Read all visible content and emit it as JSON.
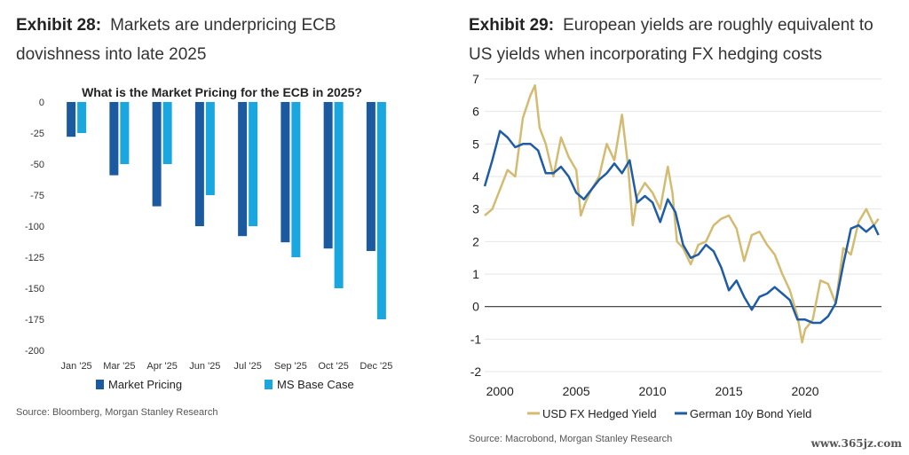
{
  "exhibit28": {
    "label": "Exhibit 28:",
    "title": "Markets are underpricing ECB dovishness into late 2025",
    "source": "Source: Bloomberg, Morgan Stanley Research"
  },
  "exhibit29": {
    "label": "Exhibit 29:",
    "title": "European yields are roughly equivalent to US yields when incorporating FX hedging costs",
    "source": "Source: Macrobond, Morgan Stanley Research"
  },
  "watermark": "www.365jz.com",
  "colors": {
    "dark_blue": "#1c5aa0",
    "light_blue": "#1aa7e0",
    "gold": "#d4bb72",
    "navy": "#1f5ca6"
  },
  "chart_data": [
    {
      "type": "bar",
      "title": "What is the Market Pricing for the ECB in 2025?",
      "categories": [
        "Jan '25",
        "Mar '25",
        "Apr '25",
        "Jun '25",
        "Jul '25",
        "Sep '25",
        "Oct '25",
        "Dec '25"
      ],
      "series": [
        {
          "name": "Market Pricing",
          "values": [
            -28,
            -59,
            -84,
            -100,
            -108,
            -113,
            -118,
            -120
          ]
        },
        {
          "name": "MS Base Case",
          "values": [
            -25,
            -50,
            -50,
            -75,
            -100,
            -125,
            -150,
            -175
          ]
        }
      ],
      "ylim": [
        -200,
        0
      ],
      "yticks": [
        0,
        -25,
        -50,
        -75,
        -100,
        -125,
        -150,
        -175,
        -200
      ],
      "legend": "bottom"
    },
    {
      "type": "line",
      "x_range": [
        1999,
        2025
      ],
      "ylim": [
        -2,
        7
      ],
      "yticks": [
        7,
        6,
        5,
        4,
        3,
        2,
        1,
        0,
        -1,
        -2
      ],
      "xticks": [
        2000,
        2005,
        2010,
        2015,
        2020
      ],
      "legend": "bottom",
      "series": [
        {
          "name": "USD FX Hedged Yield",
          "x": [
            1999.0,
            1999.5,
            2000.0,
            2000.5,
            2001.0,
            2001.5,
            2002.0,
            2002.3,
            2002.6,
            2003.0,
            2003.5,
            2004.0,
            2004.5,
            2005.0,
            2005.3,
            2005.6,
            2006.0,
            2006.5,
            2007.0,
            2007.5,
            2008.0,
            2008.4,
            2008.7,
            2009.0,
            2009.5,
            2010.0,
            2010.5,
            2011.0,
            2011.3,
            2011.6,
            2012.0,
            2012.5,
            2013.0,
            2013.5,
            2014.0,
            2014.5,
            2015.0,
            2015.5,
            2016.0,
            2016.5,
            2017.0,
            2017.5,
            2018.0,
            2018.5,
            2019.0,
            2019.5,
            2019.8,
            2020.0,
            2020.5,
            2021.0,
            2021.5,
            2022.0,
            2022.5,
            2023.0,
            2023.5,
            2024.0,
            2024.5,
            2024.8
          ],
          "values": [
            2.8,
            3.0,
            3.6,
            4.2,
            4.0,
            5.8,
            6.5,
            6.8,
            5.5,
            5.0,
            4.0,
            5.2,
            4.6,
            4.2,
            2.8,
            3.2,
            3.6,
            4.0,
            5.0,
            4.5,
            5.9,
            4.3,
            2.5,
            3.4,
            3.8,
            3.5,
            3.0,
            4.3,
            3.5,
            2.0,
            1.8,
            1.3,
            1.9,
            2.0,
            2.5,
            2.7,
            2.8,
            2.4,
            1.4,
            2.2,
            2.3,
            1.9,
            1.6,
            1.0,
            0.5,
            -0.3,
            -1.1,
            -0.7,
            -0.4,
            0.8,
            0.7,
            0.1,
            1.8,
            1.6,
            2.6,
            3.0,
            2.5,
            2.7
          ]
        },
        {
          "name": "German 10y Bond Yield",
          "x": [
            1999.0,
            1999.5,
            2000.0,
            2000.5,
            2001.0,
            2001.5,
            2002.0,
            2002.5,
            2003.0,
            2003.5,
            2004.0,
            2004.5,
            2005.0,
            2005.5,
            2006.0,
            2006.5,
            2007.0,
            2007.5,
            2008.0,
            2008.5,
            2009.0,
            2009.5,
            2010.0,
            2010.5,
            2011.0,
            2011.5,
            2012.0,
            2012.5,
            2013.0,
            2013.5,
            2014.0,
            2014.5,
            2015.0,
            2015.5,
            2016.0,
            2016.5,
            2017.0,
            2017.5,
            2018.0,
            2018.5,
            2019.0,
            2019.5,
            2020.0,
            2020.5,
            2021.0,
            2021.5,
            2022.0,
            2022.5,
            2023.0,
            2023.5,
            2024.0,
            2024.5,
            2024.8
          ],
          "values": [
            3.7,
            4.5,
            5.4,
            5.2,
            4.9,
            5.0,
            5.0,
            4.8,
            4.1,
            4.1,
            4.3,
            4.0,
            3.5,
            3.3,
            3.6,
            3.9,
            4.1,
            4.4,
            4.1,
            4.5,
            3.2,
            3.4,
            3.2,
            2.6,
            3.3,
            2.9,
            1.9,
            1.5,
            1.6,
            1.9,
            1.7,
            1.2,
            0.5,
            0.8,
            0.3,
            -0.1,
            0.3,
            0.4,
            0.6,
            0.4,
            0.2,
            -0.4,
            -0.4,
            -0.5,
            -0.5,
            -0.3,
            0.1,
            1.3,
            2.4,
            2.5,
            2.3,
            2.5,
            2.2
          ]
        }
      ]
    }
  ]
}
